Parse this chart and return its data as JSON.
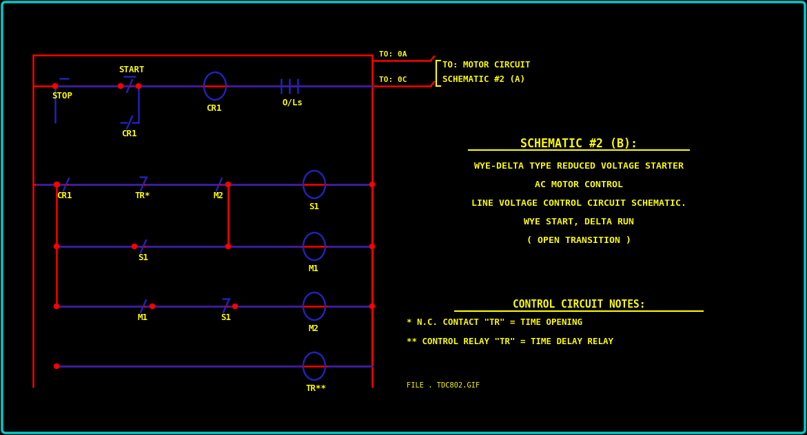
{
  "bg_color": "#000000",
  "border_color": "#00CCCC",
  "line_color_red": "#FF0000",
  "line_color_blue": "#2222BB",
  "text_color_yellow": "#FFFF00",
  "title": "SCHEMATIC #2 (B):",
  "subtitle_lines": [
    "WYE-DELTA TYPE REDUCED VOLTAGE STARTER",
    "AC MOTOR CONTROL",
    "LINE VOLTAGE CONTROL CIRCUIT SCHEMATIC.",
    "WYE START, DELTA RUN",
    "( OPEN TRANSITION )"
  ],
  "notes_title": "CONTROL CIRCUIT NOTES:",
  "notes_lines": [
    "* N.C. CONTACT \"TR\" = TIME OPENING",
    "** CONTROL RELAY \"TR\" = TIME DELAY RELAY"
  ],
  "file_label": "FILE . TDC802.GIF",
  "to_label_a": "TO: 0A",
  "to_label_c": "TO: 0C",
  "to_motor_line1": "TO: MOTOR CIRCUIT",
  "to_motor_line2": "SCHEMATIC #2 (A)"
}
